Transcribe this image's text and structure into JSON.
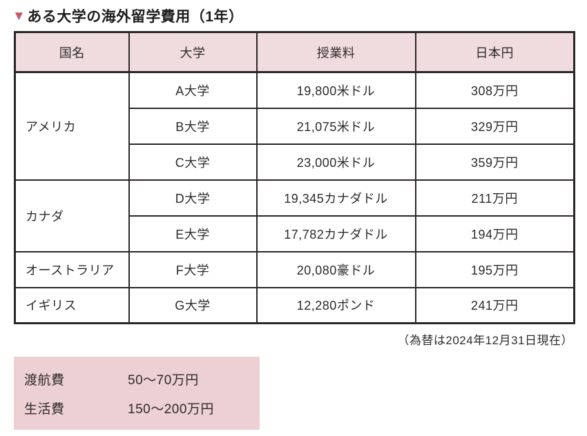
{
  "title": {
    "marker": "▼",
    "text": "ある大学の海外留学費用（1年）"
  },
  "table": {
    "headers": [
      "国名",
      "大学",
      "授業料",
      "日本円"
    ],
    "groups": [
      {
        "country": "アメリカ",
        "rows": [
          {
            "university": "A大学",
            "tuition": "19,800米ドル",
            "yen": "308万円"
          },
          {
            "university": "B大学",
            "tuition": "21,075米ドル",
            "yen": "329万円"
          },
          {
            "university": "C大学",
            "tuition": "23,000米ドル",
            "yen": "359万円"
          }
        ]
      },
      {
        "country": "カナダ",
        "rows": [
          {
            "university": "D大学",
            "tuition": "19,345カナダドル",
            "yen": "211万円"
          },
          {
            "university": "E大学",
            "tuition": "17,782カナダドル",
            "yen": "194万円"
          }
        ]
      },
      {
        "country": "オーストラリア",
        "rows": [
          {
            "university": "F大学",
            "tuition": "20,080豪ドル",
            "yen": "195万円"
          }
        ]
      },
      {
        "country": "イギリス",
        "rows": [
          {
            "university": "G大学",
            "tuition": "12,280ポンド",
            "yen": "241万円"
          }
        ]
      }
    ]
  },
  "note": "（為替は2024年12月31日現在）",
  "cost_box": {
    "items": [
      {
        "label": "渡航費",
        "value": "50～70万円"
      },
      {
        "label": "生活費",
        "value": "150～200万円"
      }
    ]
  },
  "colors": {
    "header_bg": "#f0dcde",
    "box_bg": "#ecd0d4",
    "border": "#2b2626",
    "title_marker": "#c9566b",
    "text": "#2d2a2a"
  }
}
